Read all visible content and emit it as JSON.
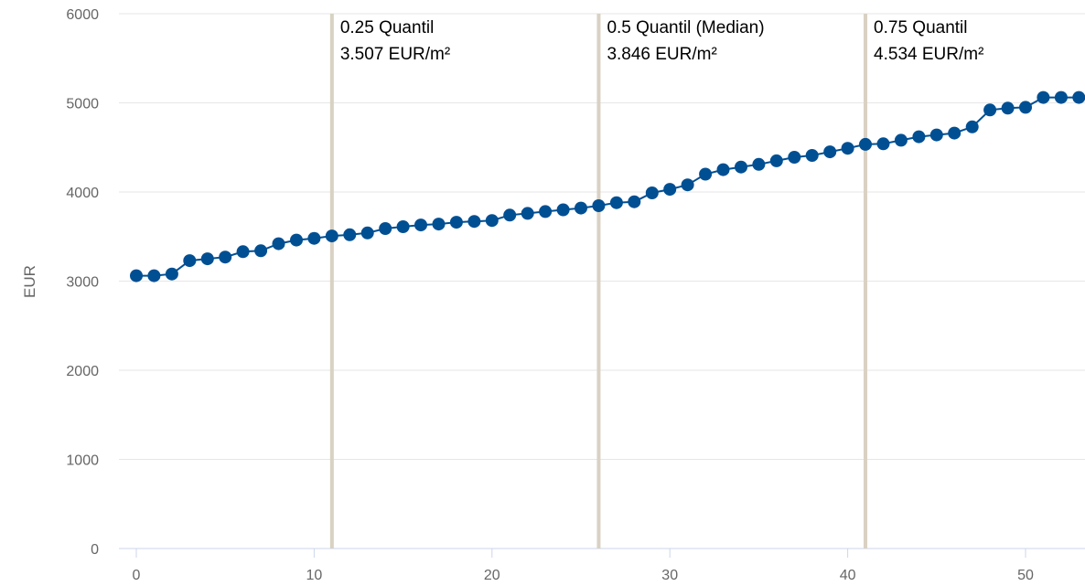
{
  "chart_data": {
    "type": "line",
    "title": "",
    "xlabel": "",
    "ylabel": "EUR",
    "xlim": [
      0,
      53
    ],
    "ylim": [
      0,
      6000
    ],
    "x_ticks": [
      0,
      10,
      20,
      30,
      40,
      50
    ],
    "y_ticks": [
      0,
      1000,
      2000,
      3000,
      4000,
      5000,
      6000
    ],
    "grid": true,
    "legend": "none",
    "colors": {
      "series": "#004f93",
      "quantile_line": "#d9d1c3",
      "grid": "#e6e6e6",
      "axis": "#ccd6eb"
    },
    "series": [
      {
        "x": [
          0,
          1,
          2,
          3,
          4,
          5,
          6,
          7,
          8,
          9,
          10,
          11,
          12,
          13,
          14,
          15,
          16,
          17,
          18,
          19,
          20,
          21,
          22,
          23,
          24,
          25,
          26,
          27,
          28,
          29,
          30,
          31,
          32,
          33,
          34,
          35,
          36,
          37,
          38,
          39,
          40,
          41,
          42,
          43,
          44,
          45,
          46,
          47,
          48,
          49,
          50,
          51,
          52,
          53
        ],
        "values": [
          3060,
          3060,
          3080,
          3230,
          3250,
          3270,
          3330,
          3340,
          3420,
          3460,
          3480,
          3507,
          3520,
          3540,
          3590,
          3610,
          3630,
          3640,
          3660,
          3670,
          3680,
          3740,
          3760,
          3780,
          3800,
          3820,
          3846,
          3880,
          3890,
          3990,
          4030,
          4080,
          4200,
          4250,
          4280,
          4310,
          4350,
          4390,
          4410,
          4450,
          4490,
          4534,
          4540,
          4580,
          4620,
          4640,
          4660,
          4730,
          4920,
          4940,
          4950,
          5060,
          5060,
          5060
        ]
      }
    ],
    "quantiles": [
      {
        "x": 11,
        "label": "0.25 Quantil",
        "value": "3.507 EUR/m²"
      },
      {
        "x": 26,
        "label": "0.5 Quantil (Median)",
        "value": "3.846 EUR/m²"
      },
      {
        "x": 41,
        "label": "0.75 Quantil",
        "value": "4.534 EUR/m²"
      }
    ]
  }
}
